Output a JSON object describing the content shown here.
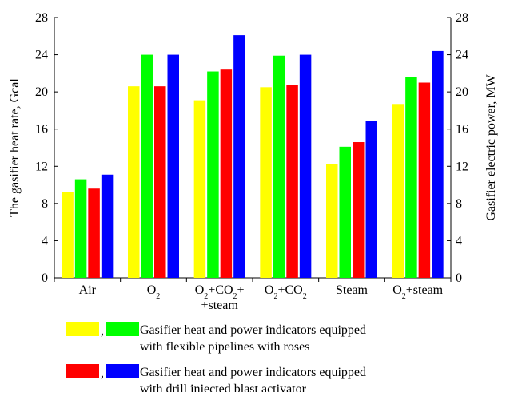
{
  "chart_data": {
    "type": "bar",
    "categories": [
      {
        "id": "air",
        "parts": [
          {
            "t": "Air"
          }
        ]
      },
      {
        "id": "o2",
        "parts": [
          {
            "t": "O"
          },
          {
            "t": "2",
            "sub": true
          }
        ]
      },
      {
        "id": "o2-co2-steam",
        "parts": [
          {
            "t": "O"
          },
          {
            "t": "2",
            "sub": true
          },
          {
            "t": "+CO"
          },
          {
            "t": "2",
            "sub": true
          },
          {
            "t": "+"
          }
        ],
        "line2": "+steam"
      },
      {
        "id": "o2-co2",
        "parts": [
          {
            "t": "O"
          },
          {
            "t": "2",
            "sub": true
          },
          {
            "t": "+CO"
          },
          {
            "t": "2",
            "sub": true
          }
        ]
      },
      {
        "id": "steam",
        "parts": [
          {
            "t": "Steam"
          }
        ]
      },
      {
        "id": "o2-steam",
        "parts": [
          {
            "t": "O"
          },
          {
            "t": "2",
            "sub": true
          },
          {
            "t": "+steam"
          }
        ]
      }
    ],
    "series": [
      {
        "color": "#ffff00",
        "values": [
          9.2,
          20.6,
          19.1,
          20.5,
          12.2,
          18.7
        ]
      },
      {
        "color": "#00ff00",
        "values": [
          10.6,
          24.0,
          22.2,
          23.9,
          14.1,
          21.6
        ]
      },
      {
        "color": "#ff0000",
        "values": [
          9.6,
          20.6,
          22.4,
          20.7,
          14.6,
          21.0
        ]
      },
      {
        "color": "#0000ff",
        "values": [
          11.1,
          24.0,
          26.1,
          24.0,
          16.9,
          24.4
        ]
      }
    ],
    "ylabel_left": "The gasifier heat rate, Gcal",
    "ylabel_right": "Gasifier electric power, MW",
    "ylim": [
      0,
      28
    ],
    "yticks": [
      0,
      4,
      8,
      12,
      16,
      20,
      24,
      28
    ],
    "legend": [
      {
        "colors": [
          "#ffff00",
          "#00ff00"
        ],
        "separator": ",",
        "lines": [
          "Gasifier heat and power  indicators equipped",
          "with flexible pipelines with  roses"
        ]
      },
      {
        "colors": [
          "#ff0000",
          "#0000ff"
        ],
        "separator": ",",
        "lines": [
          "Gasifier heat and power  indicators equipped",
          "with drill injected blast activator"
        ]
      }
    ],
    "grid": false,
    "legend_position": "bottom"
  }
}
